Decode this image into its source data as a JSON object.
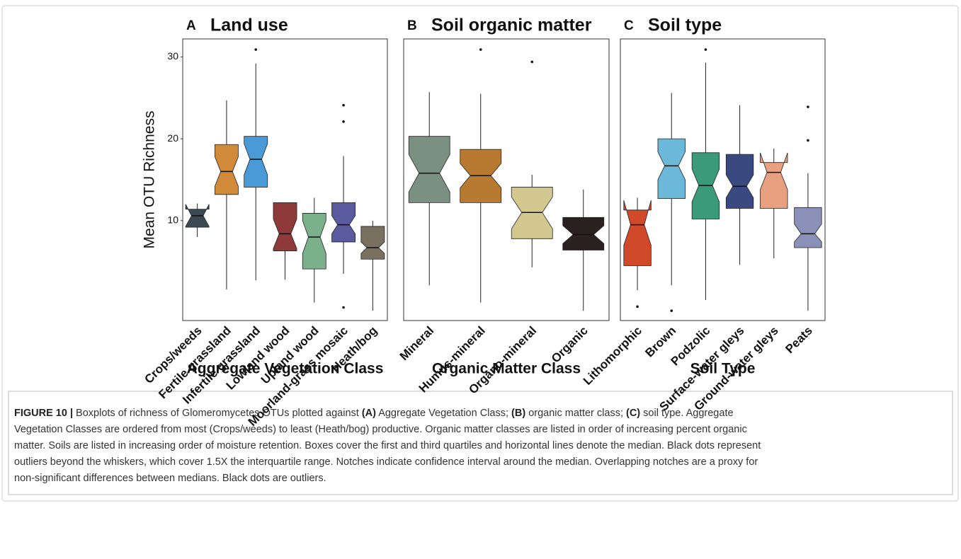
{
  "chart_data": [
    {
      "type": "box",
      "label": "A",
      "title": "Land use",
      "xlabel": "Aggregate Vegetation Class",
      "ylabel": "Mean OTU Richness",
      "categories": [
        "Crops/weeds",
        "Fertile grassland",
        "Infertile grassland",
        "Lowland wood",
        "Upland wood",
        "Moorland-grass mosaic",
        "Heath/bog"
      ],
      "colors": [
        "#3b4a52",
        "#d08a3a",
        "#4a9ad8",
        "#8e3a3a",
        "#7ab08a",
        "#5a5a9e",
        "#7a7060"
      ],
      "low": [
        8.0,
        1.6,
        2.7,
        2.8,
        0,
        3.5,
        -1.0
      ],
      "q1": [
        9.2,
        13.2,
        14.1,
        6.3,
        4.1,
        7.4,
        5.3
      ],
      "median": [
        10.6,
        16.0,
        17.5,
        8.4,
        8.0,
        9.5,
        6.7
      ],
      "q3": [
        11.4,
        19.3,
        20.3,
        12.2,
        10.9,
        12.2,
        9.3
      ],
      "high": [
        12.1,
        24.7,
        29.2,
        12.2,
        12.8,
        17.9,
        10.0
      ],
      "notch_low": [
        9.3,
        14.2,
        15.6,
        6.6,
        6.0,
        8.4,
        6.0
      ],
      "notch_high": [
        12.0,
        17.8,
        19.4,
        10.2,
        10.0,
        10.6,
        7.4
      ],
      "outliers": [
        [],
        [],
        [
          30.9
        ],
        [],
        [],
        [
          24.1,
          22.1,
          -0.6
        ],
        []
      ],
      "ylim": [
        -2.2,
        32.2
      ],
      "yticks": [
        10,
        20,
        30
      ]
    },
    {
      "type": "box",
      "label": "B",
      "title": "Soil organic matter",
      "xlabel": "Organic Matter Class",
      "categories": [
        "Mineral",
        "Humus-mineral",
        "Organo-mineral",
        "Organic"
      ],
      "colors": [
        "#7a9080",
        "#b87a30",
        "#d2c890",
        "#2a2020"
      ],
      "low": [
        2.1,
        0,
        4.3,
        -1.0
      ],
      "q1": [
        12.2,
        12.2,
        7.8,
        6.4
      ],
      "median": [
        15.8,
        15.5,
        11.0,
        8.3
      ],
      "q3": [
        20.3,
        18.7,
        14.1,
        10.4
      ],
      "high": [
        25.7,
        25.5,
        15.6,
        13.8
      ],
      "notch_low": [
        13.5,
        14.0,
        9.0,
        7.2
      ],
      "notch_high": [
        18.1,
        17.0,
        12.9,
        9.4
      ],
      "outliers": [
        [],
        [
          30.9
        ],
        [
          29.4
        ],
        []
      ],
      "ylim": [
        -2.2,
        32.2
      ]
    },
    {
      "type": "box",
      "label": "C",
      "title": "Soil type",
      "xlabel": "Soil Type",
      "categories": [
        "Lithomorphic",
        "Brown",
        "Podzolic",
        "Surface-water gleys",
        "Ground-water gleys",
        "Peats"
      ],
      "colors": [
        "#d04a2a",
        "#6cb8d8",
        "#3a9a7a",
        "#3a4a80",
        "#e8a080",
        "#8a90b8"
      ],
      "low": [
        1.5,
        2.1,
        0.3,
        4.6,
        5.4,
        -1.0
      ],
      "q1": [
        4.5,
        12.7,
        10.2,
        11.5,
        11.5,
        6.7
      ],
      "median": [
        9.5,
        16.7,
        14.3,
        14.2,
        15.9,
        8.4
      ],
      "q3": [
        11.3,
        20.0,
        18.3,
        18.1,
        17.1,
        11.6
      ],
      "high": [
        12.8,
        25.6,
        29.3,
        24.1,
        18.8,
        15.8
      ],
      "notch_low": [
        7.0,
        15.0,
        12.3,
        12.8,
        13.8,
        7.4
      ],
      "notch_high": [
        12.5,
        18.4,
        16.3,
        15.6,
        18.3,
        9.6
      ],
      "outliers": [
        [
          -0.5
        ],
        [
          -1.0
        ],
        [
          30.9
        ],
        [],
        [],
        [
          23.9,
          19.8
        ]
      ],
      "ylim": [
        -2.2,
        32.2
      ]
    }
  ],
  "caption": [
    [
      {
        "text": "FIGURE 10 |",
        "bold": true
      },
      {
        "text": " Boxplots of richness of Glomeromycetes OTUs plotted against "
      },
      {
        "text": "(A)",
        "bold": true
      },
      {
        "text": " Aggregate Vegetation Class; "
      },
      {
        "text": "(B)",
        "bold": true
      },
      {
        "text": " organic matter class; "
      },
      {
        "text": "(C)",
        "bold": true
      },
      {
        "text": " soil type. Aggregate"
      }
    ],
    [
      {
        "text": "Vegetation Classes are ordered from most (Crops/weeds) to least (Heath/bog) productive. Organic matter classes are listed in order of increasing percent organic"
      }
    ],
    [
      {
        "text": "matter. Soils are listed in increasing order of moisture retention. Boxes cover the first and third quartiles and horizontal lines denote the median. Black dots represent"
      }
    ],
    [
      {
        "text": "outliers beyond the whiskers, which cover 1.5X the interquartile range. Notches indicate confidence interval around the median. Overlapping notches are a proxy for"
      }
    ],
    [
      {
        "text": "non-significant differences between medians. Black dots are outliers."
      }
    ]
  ]
}
